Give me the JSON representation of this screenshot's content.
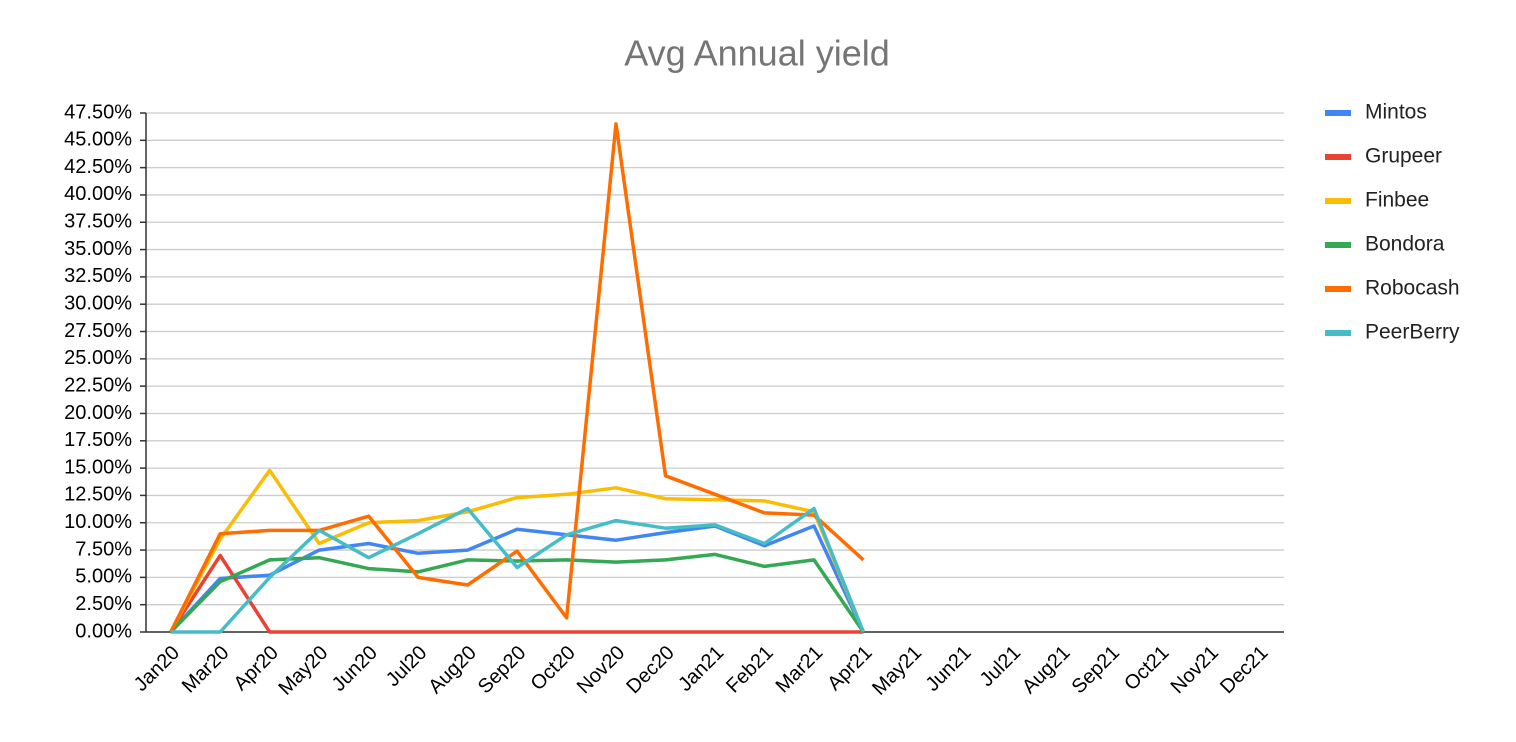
{
  "chart_data": {
    "type": "line",
    "title": "Avg Annual yield",
    "categories": [
      "Jan20",
      "Mar20",
      "Apr20",
      "May20",
      "Jun20",
      "Jul20",
      "Aug20",
      "Sep20",
      "Oct20",
      "Nov20",
      "Dec20",
      "Jan21",
      "Feb21",
      "Mar21",
      "Apr21",
      "May21",
      "Jun21",
      "Jul21",
      "Aug21",
      "Sep21",
      "Oct21",
      "Nov21",
      "Dec21"
    ],
    "series": [
      {
        "name": "Mintos",
        "color": "#4285f4",
        "values": [
          0,
          4.9,
          5.2,
          7.5,
          8.1,
          7.2,
          7.5,
          9.4,
          8.9,
          8.4,
          9.1,
          9.7,
          7.9,
          9.7,
          0,
          null,
          null,
          null,
          null,
          null,
          null,
          null,
          null
        ]
      },
      {
        "name": "Grupeer",
        "color": "#ea4335",
        "values": [
          0,
          7.0,
          0,
          0,
          0,
          0,
          0,
          0,
          0,
          0,
          0,
          0,
          0,
          0,
          0,
          null,
          null,
          null,
          null,
          null,
          null,
          null,
          null
        ]
      },
      {
        "name": "Finbee",
        "color": "#fbbc04",
        "values": [
          0,
          8.5,
          14.8,
          8.1,
          10.0,
          10.2,
          11.0,
          12.3,
          12.6,
          13.2,
          12.2,
          12.1,
          12.0,
          11.0,
          0,
          null,
          null,
          null,
          null,
          null,
          null,
          null,
          null
        ]
      },
      {
        "name": "Bondora",
        "color": "#34a853",
        "values": [
          0,
          4.6,
          6.6,
          6.8,
          5.8,
          5.5,
          6.6,
          6.5,
          6.6,
          6.4,
          6.6,
          7.1,
          6.0,
          6.6,
          0,
          null,
          null,
          null,
          null,
          null,
          null,
          null,
          null
        ]
      },
      {
        "name": "Robocash",
        "color": "#ff6d01",
        "values": [
          0,
          9.0,
          9.3,
          9.3,
          10.6,
          5.0,
          4.3,
          7.4,
          1.3,
          46.5,
          14.3,
          12.6,
          10.9,
          10.7,
          6.6,
          null,
          null,
          null,
          null,
          null,
          null,
          null,
          null
        ]
      },
      {
        "name": "PeerBerry",
        "color": "#46bdc6",
        "values": [
          0,
          0,
          5.0,
          9.3,
          6.8,
          9.0,
          11.3,
          5.9,
          8.9,
          10.2,
          9.5,
          9.8,
          8.1,
          11.3,
          0,
          null,
          null,
          null,
          null,
          null,
          null,
          null,
          null
        ]
      }
    ],
    "ylim": [
      0,
      47.5
    ],
    "yticks": [
      {
        "value": 0,
        "label": "0.00%"
      },
      {
        "value": 2.5,
        "label": "2.50%"
      },
      {
        "value": 5,
        "label": "5.00%"
      },
      {
        "value": 7.5,
        "label": "7.50%"
      },
      {
        "value": 10,
        "label": "10.00%"
      },
      {
        "value": 12.5,
        "label": "12.50%"
      },
      {
        "value": 15,
        "label": "15.00%"
      },
      {
        "value": 17.5,
        "label": "17.50%"
      },
      {
        "value": 20,
        "label": "20.00%"
      },
      {
        "value": 22.5,
        "label": "22.50%"
      },
      {
        "value": 25,
        "label": "25.00%"
      },
      {
        "value": 27.5,
        "label": "27.50%"
      },
      {
        "value": 30,
        "label": "30.00%"
      },
      {
        "value": 32.5,
        "label": "32.50%"
      },
      {
        "value": 35,
        "label": "35.00%"
      },
      {
        "value": 37.5,
        "label": "37.50%"
      },
      {
        "value": 40,
        "label": "40.00%"
      },
      {
        "value": 42.5,
        "label": "42.50%"
      },
      {
        "value": 45,
        "label": "45.00%"
      },
      {
        "value": 47.5,
        "label": "47.50%"
      }
    ],
    "grid": true,
    "legend": "right"
  }
}
